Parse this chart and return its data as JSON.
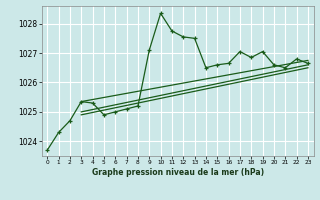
{
  "title": "Graphe pression niveau de la mer (hPa)",
  "background_color": "#cce8e8",
  "grid_color": "#ffffff",
  "line_color": "#1a5c1a",
  "xlim": [
    -0.5,
    23.5
  ],
  "ylim": [
    1023.5,
    1028.6
  ],
  "yticks": [
    1024,
    1025,
    1026,
    1027,
    1028
  ],
  "xticks": [
    0,
    1,
    2,
    3,
    4,
    5,
    6,
    7,
    8,
    9,
    10,
    11,
    12,
    13,
    14,
    15,
    16,
    17,
    18,
    19,
    20,
    21,
    22,
    23
  ],
  "main_series": [
    1023.7,
    1024.3,
    1024.7,
    1025.35,
    1025.3,
    1024.9,
    1025.0,
    1025.1,
    1025.2,
    1027.1,
    1028.35,
    1027.75,
    1027.55,
    1027.5,
    1026.5,
    1026.6,
    1026.65,
    1027.05,
    1026.85,
    1027.05,
    1026.6,
    1026.5,
    1026.8,
    1026.65
  ],
  "line1_x": [
    3,
    23
  ],
  "line1_y": [
    1025.35,
    1026.75
  ],
  "line2_x": [
    3,
    23
  ],
  "line2_y": [
    1025.0,
    1026.6
  ],
  "line3_x": [
    3,
    23
  ],
  "line3_y": [
    1024.9,
    1026.5
  ]
}
